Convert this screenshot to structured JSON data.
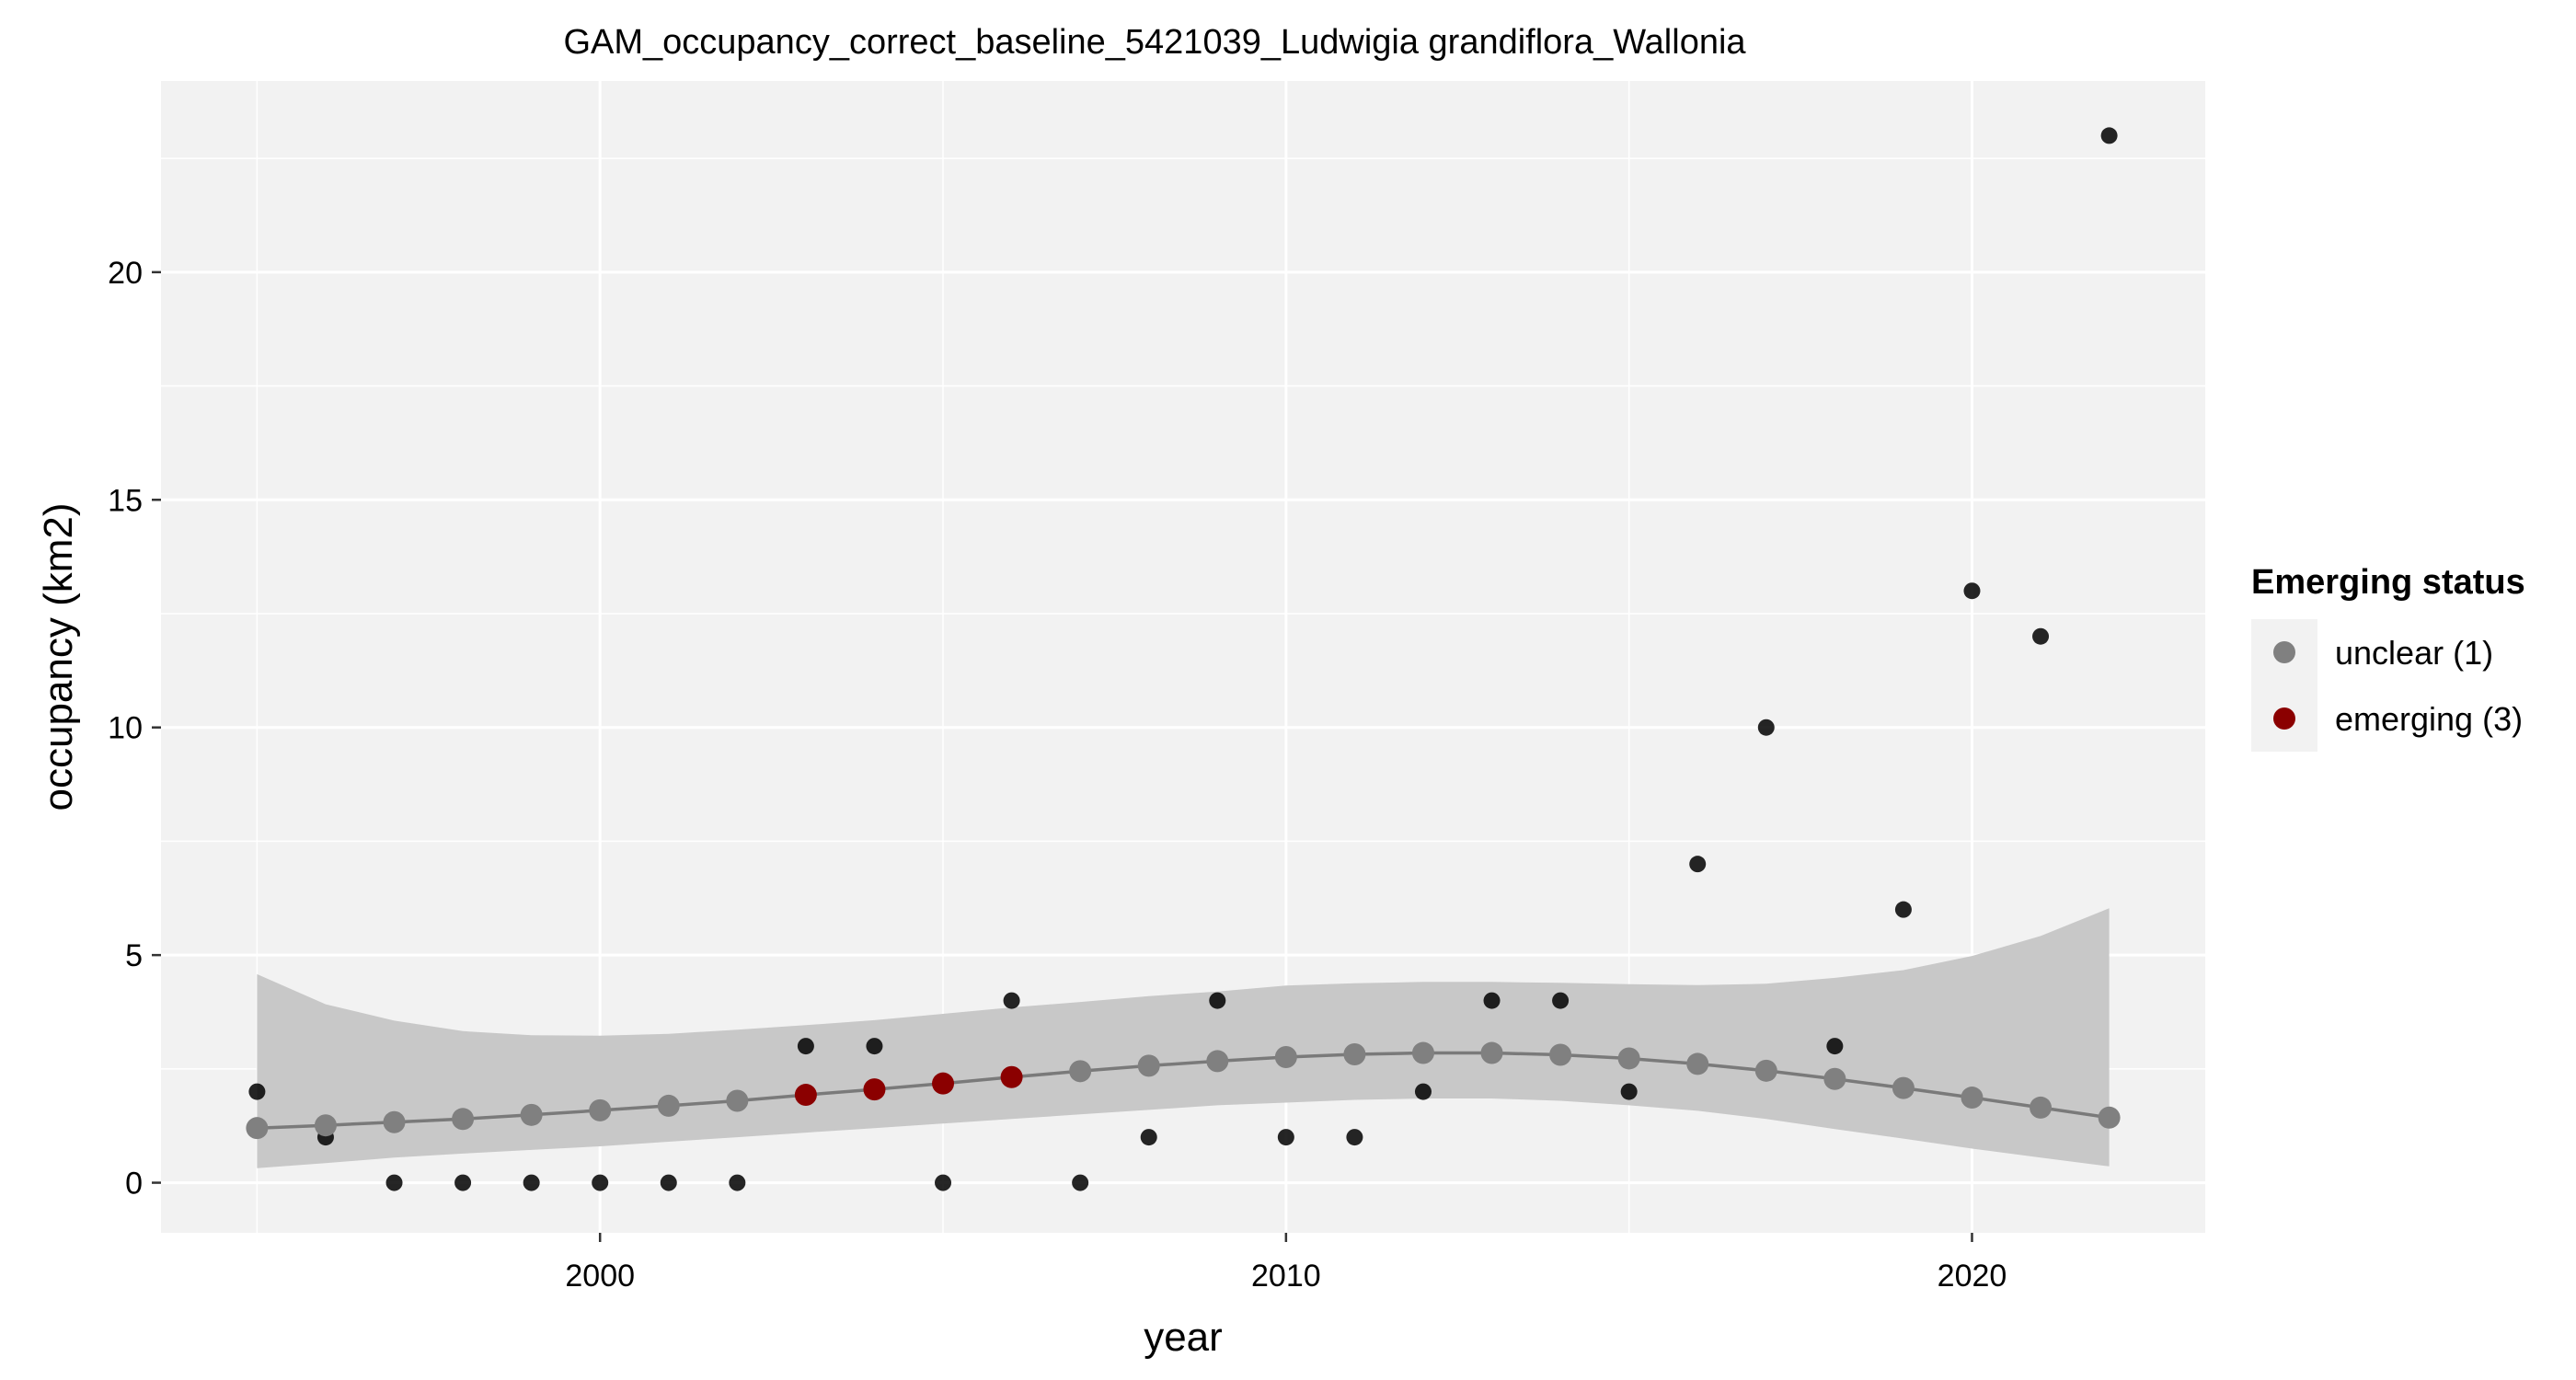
{
  "chart_data": {
    "type": "scatter",
    "title": "GAM_occupancy_correct_baseline_5421039_Ludwigia grandiflora_Wallonia",
    "xlabel": "year",
    "ylabel": "occupancy (km2)",
    "xlim": [
      1993.6,
      2023.4
    ],
    "ylim": [
      -1.1,
      24.2
    ],
    "x_ticks": [
      2000,
      2010,
      2020
    ],
    "y_ticks": [
      0,
      5,
      10,
      15,
      20
    ],
    "grid": true,
    "legend": {
      "title": "Emerging status",
      "placement": "right",
      "items": [
        {
          "label": "unclear (1)",
          "color": "#808080"
        },
        {
          "label": "emerging (3)",
          "color": "#8b0000"
        }
      ]
    },
    "colors": {
      "panel": "#f2f2f2",
      "ribbon": "#c8c8c8",
      "line": "#7a7a7a",
      "observed": "#000000"
    },
    "observed": {
      "x": [
        1995,
        1996,
        1997,
        1998,
        1999,
        2000,
        2001,
        2002,
        2003,
        2004,
        2005,
        2006,
        2007,
        2008,
        2009,
        2010,
        2011,
        2012,
        2013,
        2014,
        2015,
        2016,
        2017,
        2018,
        2019,
        2020,
        2021,
        2022
      ],
      "y": [
        2,
        1,
        0,
        0,
        0,
        0,
        0,
        0,
        3,
        3,
        0,
        4,
        0,
        1,
        4,
        1,
        1,
        2,
        4,
        4,
        2,
        7,
        10,
        3,
        6,
        13,
        12,
        23
      ]
    },
    "series": [
      {
        "x": [
          1995,
          1996,
          1997,
          1998,
          1999,
          2000,
          2001,
          2002,
          2003,
          2004,
          2005,
          2006,
          2007,
          2008,
          2009,
          2010,
          2011,
          2012,
          2013,
          2014,
          2015,
          2016,
          2017,
          2018,
          2019,
          2020,
          2021,
          2022
        ],
        "fit": [
          1.2,
          1.26,
          1.33,
          1.4,
          1.49,
          1.59,
          1.69,
          1.8,
          1.93,
          2.05,
          2.18,
          2.32,
          2.45,
          2.57,
          2.67,
          2.76,
          2.82,
          2.85,
          2.85,
          2.81,
          2.73,
          2.61,
          2.46,
          2.28,
          2.08,
          1.87,
          1.65,
          1.43
        ],
        "lower": [
          0.32,
          0.43,
          0.55,
          0.64,
          0.72,
          0.8,
          0.9,
          1.0,
          1.1,
          1.2,
          1.3,
          1.4,
          1.5,
          1.6,
          1.7,
          1.76,
          1.82,
          1.85,
          1.85,
          1.8,
          1.7,
          1.58,
          1.4,
          1.18,
          0.97,
          0.75,
          0.55,
          0.36
        ],
        "upper": [
          4.58,
          3.92,
          3.56,
          3.33,
          3.24,
          3.23,
          3.27,
          3.36,
          3.46,
          3.57,
          3.71,
          3.85,
          3.97,
          4.1,
          4.2,
          4.33,
          4.38,
          4.41,
          4.41,
          4.39,
          4.36,
          4.34,
          4.37,
          4.5,
          4.67,
          4.98,
          5.42,
          6.03
        ],
        "status": [
          "unclear (1)",
          "unclear (1)",
          "unclear (1)",
          "unclear (1)",
          "unclear (1)",
          "unclear (1)",
          "unclear (1)",
          "unclear (1)",
          "emerging (3)",
          "emerging (3)",
          "emerging (3)",
          "emerging (3)",
          "unclear (1)",
          "unclear (1)",
          "unclear (1)",
          "unclear (1)",
          "unclear (1)",
          "unclear (1)",
          "unclear (1)",
          "unclear (1)",
          "unclear (1)",
          "unclear (1)",
          "unclear (1)",
          "unclear (1)",
          "unclear (1)",
          "unclear (1)",
          "unclear (1)",
          "unclear (1)"
        ]
      }
    ]
  }
}
